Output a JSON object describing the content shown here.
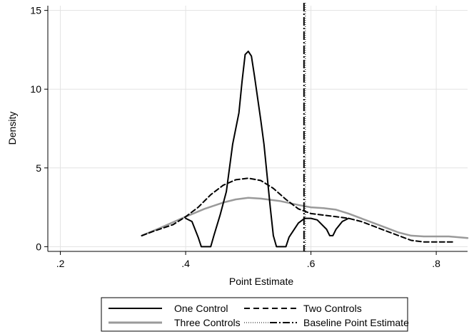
{
  "chart_data": {
    "type": "line",
    "xlabel": "Point Estimate",
    "ylabel": "Density",
    "xlim": [
      0.18,
      0.85
    ],
    "ylim": [
      -0.3,
      15.3
    ],
    "x_ticks": [
      0.2,
      0.4,
      0.6,
      0.8
    ],
    "x_tick_labels": [
      ".2",
      ".4",
      ".6",
      ".8"
    ],
    "y_ticks": [
      0,
      5,
      10,
      15
    ],
    "y_tick_labels": [
      "0",
      "5",
      "10",
      "15"
    ],
    "grid": true,
    "legend_position": "bottom",
    "colors": {
      "gridline": "#e3e3e3",
      "one": "#000000",
      "two": "#000000",
      "three": "#9a9a9a",
      "baseline": "#000000"
    },
    "series": [
      {
        "name": "One Control",
        "style": "solid",
        "points": [
          [
            0.4,
            1.8
          ],
          [
            0.41,
            1.6
          ],
          [
            0.42,
            0.6
          ],
          [
            0.425,
            0
          ],
          [
            0.44,
            0
          ],
          [
            0.445,
            0.7
          ],
          [
            0.455,
            2.0
          ],
          [
            0.465,
            3.5
          ],
          [
            0.475,
            6.5
          ],
          [
            0.485,
            8.5
          ],
          [
            0.49,
            10.5
          ],
          [
            0.495,
            12.2
          ],
          [
            0.5,
            12.4
          ],
          [
            0.505,
            12.1
          ],
          [
            0.51,
            10.8
          ],
          [
            0.52,
            8.0
          ],
          [
            0.525,
            6.5
          ],
          [
            0.53,
            4.5
          ],
          [
            0.535,
            2.5
          ],
          [
            0.54,
            0.7
          ],
          [
            0.545,
            0
          ],
          [
            0.56,
            0
          ],
          [
            0.565,
            0.6
          ],
          [
            0.58,
            1.5
          ],
          [
            0.59,
            1.8
          ],
          [
            0.6,
            1.8
          ],
          [
            0.61,
            1.7
          ],
          [
            0.625,
            1.1
          ],
          [
            0.63,
            0.7
          ],
          [
            0.635,
            0.7
          ],
          [
            0.64,
            1.1
          ],
          [
            0.65,
            1.6
          ],
          [
            0.66,
            1.8
          ]
        ]
      },
      {
        "name": "Two Controls",
        "style": "dashed",
        "points": [
          [
            0.33,
            0.7
          ],
          [
            0.35,
            1.0
          ],
          [
            0.38,
            1.4
          ],
          [
            0.4,
            1.9
          ],
          [
            0.42,
            2.5
          ],
          [
            0.44,
            3.3
          ],
          [
            0.46,
            3.9
          ],
          [
            0.48,
            4.25
          ],
          [
            0.5,
            4.35
          ],
          [
            0.52,
            4.2
          ],
          [
            0.54,
            3.7
          ],
          [
            0.56,
            3.0
          ],
          [
            0.58,
            2.4
          ],
          [
            0.6,
            2.1
          ],
          [
            0.62,
            2.0
          ],
          [
            0.64,
            1.9
          ],
          [
            0.66,
            1.8
          ],
          [
            0.68,
            1.6
          ],
          [
            0.7,
            1.3
          ],
          [
            0.72,
            1.0
          ],
          [
            0.74,
            0.7
          ],
          [
            0.76,
            0.4
          ],
          [
            0.78,
            0.3
          ],
          [
            0.8,
            0.3
          ],
          [
            0.83,
            0.3
          ]
        ]
      },
      {
        "name": "Three Controls",
        "style": "solid",
        "points": [
          [
            0.33,
            0.7
          ],
          [
            0.36,
            1.2
          ],
          [
            0.4,
            1.9
          ],
          [
            0.43,
            2.4
          ],
          [
            0.46,
            2.8
          ],
          [
            0.48,
            3.0
          ],
          [
            0.5,
            3.1
          ],
          [
            0.52,
            3.05
          ],
          [
            0.55,
            2.9
          ],
          [
            0.58,
            2.65
          ],
          [
            0.6,
            2.5
          ],
          [
            0.62,
            2.45
          ],
          [
            0.64,
            2.35
          ],
          [
            0.66,
            2.1
          ],
          [
            0.68,
            1.8
          ],
          [
            0.7,
            1.5
          ],
          [
            0.72,
            1.2
          ],
          [
            0.74,
            0.9
          ],
          [
            0.76,
            0.7
          ],
          [
            0.78,
            0.65
          ],
          [
            0.8,
            0.65
          ],
          [
            0.82,
            0.65
          ],
          [
            0.85,
            0.55
          ]
        ]
      }
    ],
    "baseline": {
      "name": "Baseline Point Estimate",
      "x": 0.59
    },
    "legend": {
      "items": [
        {
          "label": "One Control",
          "style": "solid-black"
        },
        {
          "label": "Two Controls",
          "style": "dashed-black"
        },
        {
          "label": "Three Controls",
          "style": "solid-gray"
        },
        {
          "label": "Baseline Point Estimate",
          "style": "dashdot-black"
        }
      ]
    }
  }
}
